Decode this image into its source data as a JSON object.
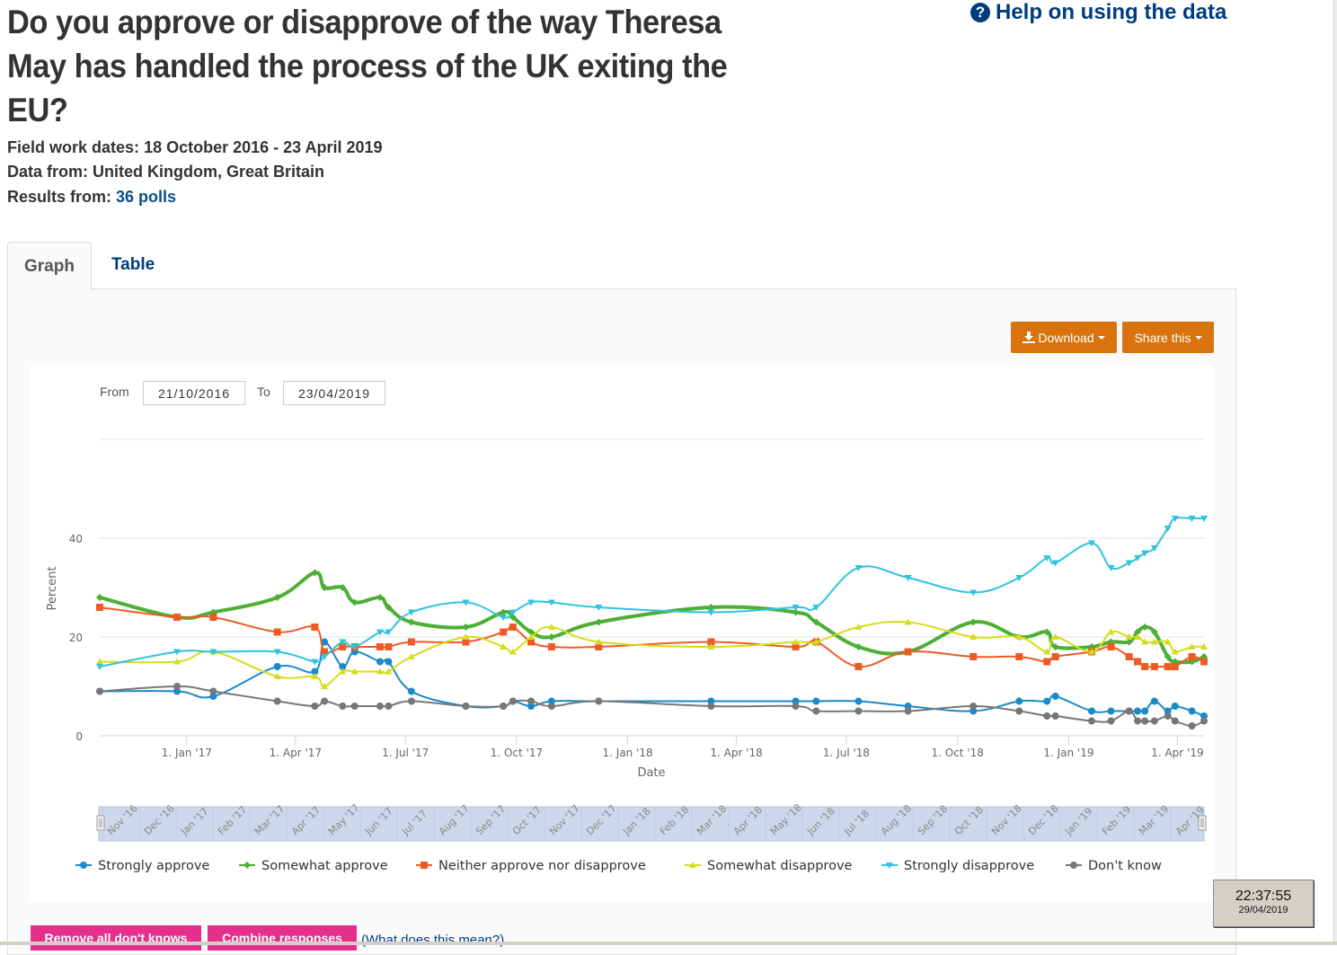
{
  "page": {
    "title": "Do you approve or disapprove of the way Theresa May has handled the process of the UK exiting the EU?",
    "help_link": "Help on using the data",
    "fieldwork_label": "Field work dates:",
    "fieldwork_value": "18 October 2016 - 23 April 2019",
    "data_from_label": "Data from:",
    "data_from_value": "United Kingdom, Great Britain",
    "results_label": "Results from:",
    "results_value": "36 polls"
  },
  "tabs": [
    {
      "label": "Graph",
      "active": true
    },
    {
      "label": "Table",
      "active": false
    }
  ],
  "toolbar": {
    "download_label": "Download",
    "share_label": "Share this"
  },
  "range": {
    "from_label": "From",
    "from_value": "21/10/2016",
    "to_label": "To",
    "to_value": "23/04/2019"
  },
  "navigator_labels": [
    "Nov '16",
    "Dec '16",
    "Jan '17",
    "Feb '17",
    "Mar '17",
    "Apr '17",
    "May '17",
    "Jun '17",
    "Jul '17",
    "Aug '17",
    "Sep '17",
    "Oct '17",
    "Nov '17",
    "Dec '17",
    "Jan '18",
    "Feb '18",
    "Mar '18",
    "Apr '18",
    "May '18",
    "Jun '18",
    "Jul '18",
    "Aug '18",
    "Sep '18",
    "Oct '18",
    "Nov '18",
    "Dec '18",
    "Jan '19",
    "Feb '19",
    "Mar '19",
    "Apr '19"
  ],
  "actions": {
    "remove_dk_label": "Remove all don't knows",
    "combine_label": "Combine responses",
    "what_label": "(What does this mean?)"
  },
  "clock": {
    "time": "22:37:55",
    "date": "29/04/2019"
  },
  "chart_data": {
    "type": "line",
    "title": "",
    "xlabel": "Date",
    "ylabel": "Percent",
    "ylim": [
      0,
      60
    ],
    "yticks": [
      0,
      20,
      40
    ],
    "xticks": [
      "1. Jan '17",
      "1. Apr '17",
      "1. Jul '17",
      "1. Oct '17",
      "1. Jan '18",
      "1. Apr '18",
      "1. Jul '18",
      "1. Oct '18",
      "1. Jan '19",
      "1. Apr '19"
    ],
    "xtick_dates": [
      "2017-01-01",
      "2017-04-01",
      "2017-07-01",
      "2017-10-01",
      "2018-01-01",
      "2018-04-01",
      "2018-07-01",
      "2018-10-01",
      "2019-01-01",
      "2019-04-01"
    ],
    "x_range": [
      "2016-10-21",
      "2019-04-23"
    ],
    "grid": true,
    "legend_position": "bottom",
    "x": [
      "2016-10-21",
      "2016-12-24",
      "2017-01-23",
      "2017-03-17",
      "2017-04-17",
      "2017-04-25",
      "2017-05-10",
      "2017-05-20",
      "2017-06-10",
      "2017-06-17",
      "2017-07-06",
      "2017-08-20",
      "2017-09-20",
      "2017-09-28",
      "2017-10-13",
      "2017-10-30",
      "2017-12-08",
      "2018-03-11",
      "2018-05-20",
      "2018-06-06",
      "2018-07-11",
      "2018-08-21",
      "2018-10-14",
      "2018-11-21",
      "2018-12-14",
      "2018-12-21",
      "2019-01-20",
      "2019-02-05",
      "2019-02-20",
      "2019-02-27",
      "2019-03-05",
      "2019-03-13",
      "2019-03-24",
      "2019-03-30",
      "2019-04-13",
      "2019-04-23"
    ],
    "series": [
      {
        "name": "Strongly approve",
        "color": "#1a8ac8",
        "marker": "circle",
        "values": [
          9,
          9,
          8,
          14,
          13,
          19,
          14,
          17,
          15,
          15,
          9,
          6,
          6,
          7,
          6,
          7,
          7,
          7,
          7,
          7,
          7,
          6,
          5,
          7,
          7,
          8,
          5,
          5,
          5,
          5,
          5,
          7,
          5,
          6,
          5,
          4
        ]
      },
      {
        "name": "Somewhat approve",
        "color": "#4daf35",
        "marker": "diamond",
        "values": [
          28,
          24,
          25,
          28,
          33,
          30,
          30,
          27,
          28,
          26,
          23,
          22,
          25,
          24,
          21,
          20,
          23,
          26,
          25,
          23,
          18,
          17,
          23,
          20,
          21,
          18,
          18,
          19,
          19,
          21,
          22,
          21,
          16,
          15,
          15,
          16
        ]
      },
      {
        "name": "Neither approve nor disapprove",
        "color": "#ee5a24",
        "marker": "square",
        "values": [
          26,
          24,
          24,
          21,
          22,
          17,
          18,
          18,
          18,
          18,
          19,
          19,
          21,
          22,
          19,
          18,
          18,
          19,
          18,
          19,
          14,
          17,
          16,
          16,
          15,
          16,
          17,
          18,
          16,
          15,
          14,
          14,
          14,
          14,
          16,
          15
        ]
      },
      {
        "name": "Somewhat disapprove",
        "color": "#d4dd1a",
        "marker": "triangle",
        "values": [
          15,
          15,
          17,
          12,
          12,
          10,
          13,
          13,
          13,
          13,
          16,
          20,
          18,
          17,
          20,
          22,
          19,
          18,
          19,
          19,
          22,
          23,
          20,
          20,
          17,
          20,
          17,
          21,
          20,
          20,
          19,
          19,
          19,
          17,
          18,
          18
        ]
      },
      {
        "name": "Strongly disapprove",
        "color": "#2ec4de",
        "marker": "triangle-down",
        "values": [
          14,
          17,
          17,
          17,
          15,
          16,
          19,
          18,
          21,
          21,
          25,
          27,
          24,
          25,
          27,
          27,
          26,
          25,
          26,
          26,
          34,
          32,
          29,
          32,
          36,
          35,
          39,
          34,
          35,
          36,
          37,
          38,
          42,
          44,
          44,
          44
        ]
      },
      {
        "name": "Don't know",
        "color": "#777777",
        "marker": "circle",
        "values": [
          9,
          10,
          9,
          7,
          6,
          7,
          6,
          6,
          6,
          6,
          7,
          6,
          6,
          7,
          7,
          6,
          7,
          6,
          6,
          5,
          5,
          5,
          6,
          5,
          4,
          4,
          3,
          3,
          5,
          3,
          3,
          3,
          4,
          3,
          2,
          3
        ]
      }
    ]
  }
}
